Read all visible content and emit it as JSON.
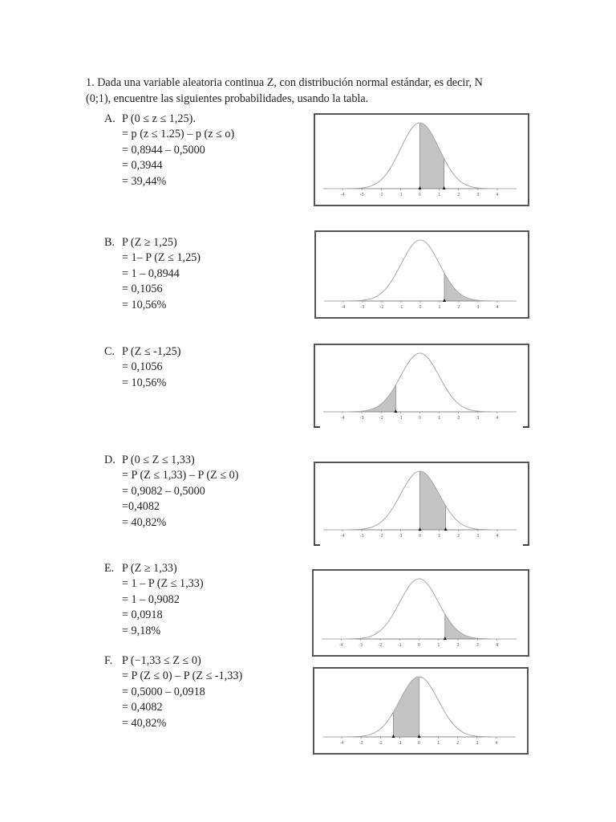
{
  "intro": {
    "line1": "1. Dada una variable aleatoria continua Z, con distribución normal estándar, es decir, N",
    "line2": "(0;1), encuentre las siguientes probabilidades, usando la tabla."
  },
  "problems": [
    {
      "letter": "A.",
      "statement": "P (0 ≤ z ≤ 1,25).",
      "steps": [
        "= p (z ≤ 1.25) – p (z ≤ o)",
        "= 0,8944 –  0,5000",
        "= 0,3944",
        "= 39,44%"
      ]
    },
    {
      "letter": "B.",
      "statement": "P (Z ≥ 1,25)",
      "steps": [
        "= 1– P (Z ≤ 1,25)",
        "= 1 – 0,8944",
        "= 0,1056",
        "= 10,56%"
      ]
    },
    {
      "letter": "C.",
      "statement": "P (Z ≤ -1,25)",
      "steps": [
        "= 0,1056",
        "= 10,56%"
      ]
    },
    {
      "letter": "D.",
      "statement": "P (0 ≤ Z ≤ 1,33)",
      "steps": [
        "= P (Z ≤ 1,33) – P (Z ≤ 0)",
        "= 0,9082 – 0,5000",
        "=0,4082",
        "= 40,82%"
      ]
    },
    {
      "letter": "E.",
      "statement": "P (Z ≥ 1,33)",
      "steps": [
        "= 1 – P (Z ≤ 1,33)",
        "= 1 – 0,9082",
        "= 0,0918",
        "= 9,18%"
      ]
    },
    {
      "letter": "F.",
      "statement": "P (−1,33 ≤ Z ≤ 0)",
      "steps": [
        "= P (Z ≤ 0) – P (Z ≤ -1,33)",
        "= 0,5000 – 0,0918",
        "= 0,4082",
        "= 40,82%"
      ]
    }
  ],
  "colors": {
    "curve": "#a8a8a8",
    "shade": "#c4c4c4",
    "axis": "#888888",
    "border": "#555555",
    "marker": "#111111"
  },
  "chart_data": [
    {
      "type": "area",
      "title": "Normal estándar – A",
      "distribution": "N(0,1)",
      "x_ticks": [
        -4,
        -3,
        -2,
        -1,
        0,
        1,
        2,
        3,
        4
      ],
      "xlim": [
        -5,
        5
      ],
      "shaded_from": 0,
      "shaded_to": 1.25,
      "markers": [
        0,
        1.25
      ],
      "area": 0.3944
    },
    {
      "type": "area",
      "title": "Normal estándar – B",
      "distribution": "N(0,1)",
      "x_ticks": [
        -4,
        -3,
        -2,
        -1,
        0,
        1,
        2,
        3,
        4
      ],
      "xlim": [
        -5,
        5
      ],
      "shaded_from": 1.25,
      "shaded_to": 5,
      "markers": [
        1.25
      ],
      "area": 0.1056
    },
    {
      "type": "area",
      "title": "Normal estándar – C",
      "distribution": "N(0,1)",
      "x_ticks": [
        -4,
        -3,
        -2,
        -1,
        0,
        1,
        2,
        3,
        4
      ],
      "xlim": [
        -5,
        5
      ],
      "shaded_from": -5,
      "shaded_to": -1.25,
      "markers": [
        -1.25
      ],
      "area": 0.1056
    },
    {
      "type": "area",
      "title": "Normal estándar – D",
      "distribution": "N(0,1)",
      "x_ticks": [
        -4,
        -3,
        -2,
        -1,
        0,
        1,
        2,
        3,
        4
      ],
      "xlim": [
        -5,
        5
      ],
      "shaded_from": 0,
      "shaded_to": 1.33,
      "markers": [
        0,
        1.33
      ],
      "area": 0.4082
    },
    {
      "type": "area",
      "title": "Normal estándar – E",
      "distribution": "N(0,1)",
      "x_ticks": [
        -4,
        -3,
        -2,
        -1,
        0,
        1,
        2,
        3,
        4
      ],
      "xlim": [
        -5,
        5
      ],
      "shaded_from": 1.33,
      "shaded_to": 5,
      "markers": [
        1.33
      ],
      "area": 0.0918
    },
    {
      "type": "area",
      "title": "Normal estándar – F",
      "distribution": "N(0,1)",
      "x_ticks": [
        -4,
        -3,
        -2,
        -1,
        0,
        1,
        2,
        3,
        4
      ],
      "xlim": [
        -5,
        5
      ],
      "shaded_from": -1.33,
      "shaded_to": 0,
      "markers": [
        -1.33,
        0
      ],
      "area": 0.4082
    }
  ]
}
